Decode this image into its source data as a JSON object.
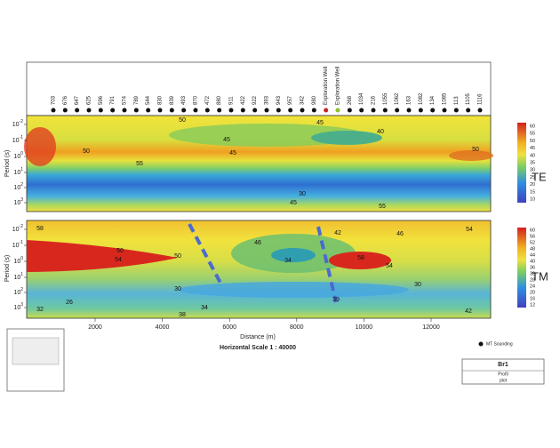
{
  "header": {
    "stations": [
      "703",
      "676",
      "647",
      "625",
      "596",
      "791",
      "574",
      "789",
      "544",
      "830",
      "839",
      "493",
      "870",
      "472",
      "880",
      "911",
      "422",
      "922",
      "393",
      "943",
      "957",
      "342",
      "980",
      "Exploration Well",
      "Exploration Well",
      "268",
      "1034",
      "216",
      "1055",
      "1062",
      "163",
      "1082",
      "134",
      "1085",
      "113",
      "1105",
      "1116"
    ]
  },
  "te_panel": {
    "y_label": "Period (s)",
    "yticks": [
      {
        "base": "10",
        "exp": "-2"
      },
      {
        "base": "10",
        "exp": "-1"
      },
      {
        "base": "10",
        "exp": "0"
      },
      {
        "base": "10",
        "exp": "1"
      },
      {
        "base": "10",
        "exp": "2"
      },
      {
        "base": "10",
        "exp": "3"
      }
    ],
    "contour_labels": [
      "50",
      "45",
      "45",
      "40",
      "50",
      "45",
      "55",
      "50",
      "30",
      "45",
      "55"
    ],
    "colorbar": [
      "60",
      "55",
      "50",
      "45",
      "40",
      "35",
      "30",
      "25",
      "20",
      "15",
      "10"
    ],
    "mode": "TE"
  },
  "tm_panel": {
    "y_label": "Period (s)",
    "yticks": [
      {
        "base": "10",
        "exp": "-2"
      },
      {
        "base": "10",
        "exp": "-1"
      },
      {
        "base": "10",
        "exp": "0"
      },
      {
        "base": "10",
        "exp": "1"
      },
      {
        "base": "10",
        "exp": "2"
      },
      {
        "base": "10",
        "exp": "3"
      }
    ],
    "contour_labels": [
      "58",
      "50",
      "54",
      "46",
      "42",
      "46",
      "54",
      "50",
      "34",
      "58",
      "54",
      "30",
      "30",
      "26",
      "32",
      "34",
      "38",
      "39",
      "42"
    ],
    "colorbar": [
      "60",
      "56",
      "52",
      "48",
      "44",
      "40",
      "36",
      "32",
      "28",
      "24",
      "20",
      "16",
      "12"
    ],
    "mode": "TM"
  },
  "x_axis": {
    "ticks": [
      "2000",
      "4000",
      "6000",
      "8000",
      "10000",
      "12000"
    ],
    "label": "Distance (m)",
    "scale": "Horizontal Scale 1 : 40000"
  },
  "legend": {
    "label": "MT Sounding"
  },
  "title_block": {
    "name": "Br1",
    "line2": "Profil",
    "line3": "plot"
  }
}
